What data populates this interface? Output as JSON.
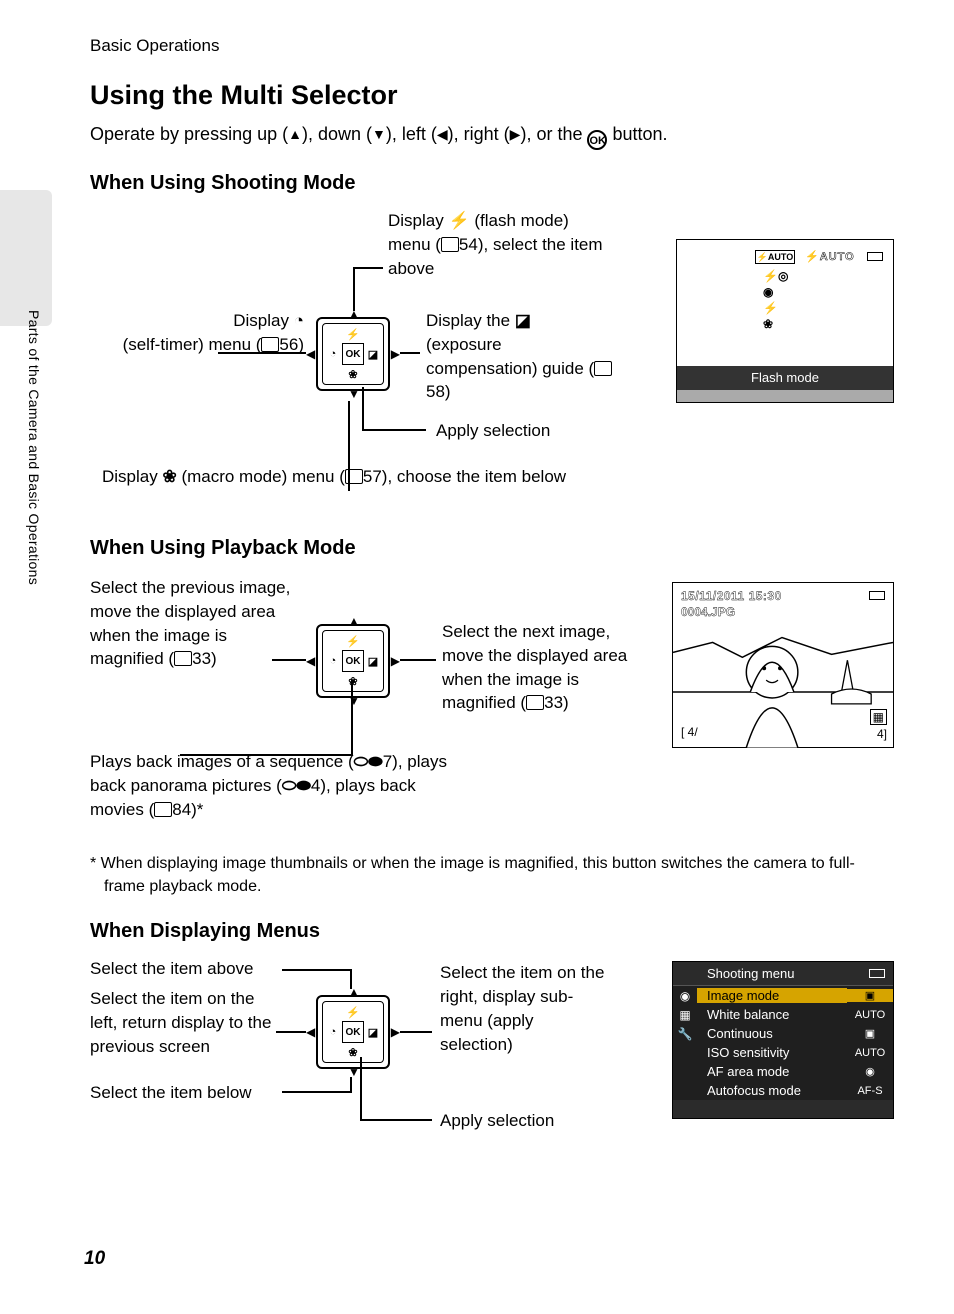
{
  "breadcrumb": "Basic Operations",
  "side_label": "Parts of the Camera and Basic Operations",
  "page_number": "10",
  "title": "Using the Multi Selector",
  "intro_pre": "Operate by pressing up (",
  "intro_mid1": "), down (",
  "intro_mid2": "), left (",
  "intro_mid3": "), right (",
  "intro_mid4": "), or the ",
  "intro_end": " button.",
  "ok_label": "OK",
  "shooting": {
    "heading": "When Using Shooting Mode",
    "up_pre": "Display ",
    "up_post": " (flash mode) menu (",
    "up_ref": "54), select the item above",
    "left_pre": "Display ",
    "left_post": " (self-timer) menu (",
    "left_ref": "56)",
    "right_pre": "Display the ",
    "right_post": " (exposure compensation) guide (",
    "right_ref": "58)",
    "apply": "Apply selection",
    "down_pre": "Display ",
    "down_post": " (macro mode) menu (",
    "down_ref": "57), choose the item below",
    "shot": {
      "auto_box": "⚡AUTO",
      "auto_text": "⚡AUTO",
      "icon_col": "⚡◎\n◉\n⚡\n❀",
      "bar_label": "Flash mode"
    }
  },
  "playback": {
    "heading": "When Using Playback Mode",
    "left_pre": "Select the previous image, move the displayed area when the image is magnified (",
    "left_ref": "33)",
    "right_pre": "Select the next image, move the displayed area when the image is magnified (",
    "right_ref": "33)",
    "ok_pre": "Plays back images of a sequence (",
    "ok_mid1": "7), plays back panorama pictures (",
    "ok_mid2": "4), plays back movies (",
    "ok_ref": "84)*",
    "shot": {
      "date": "15/11/2011  15:30",
      "file": "0004.JPG",
      "counter": "[   4/",
      "corner": "4]"
    },
    "footnote": "*   When displaying image thumbnails or when the image is magnified, this button switches the camera to full-frame playback mode."
  },
  "menus": {
    "heading": "When Displaying Menus",
    "up": "Select the item above",
    "left": "Select the item on the left, return display to the previous screen",
    "down": "Select the item below",
    "right": "Select the item on the right, display sub-menu (apply selection)",
    "apply": "Apply selection",
    "shot": {
      "title": "Shooting menu",
      "items": [
        {
          "l": "Image mode",
          "r": "▣",
          "hl": true
        },
        {
          "l": "White balance",
          "r": "AUTO"
        },
        {
          "l": "Continuous",
          "r": "▣"
        },
        {
          "l": "ISO sensitivity",
          "r": "AUTO"
        },
        {
          "l": "AF area mode",
          "r": "◉"
        },
        {
          "l": "Autofocus mode",
          "r": "AF-S"
        }
      ]
    }
  }
}
